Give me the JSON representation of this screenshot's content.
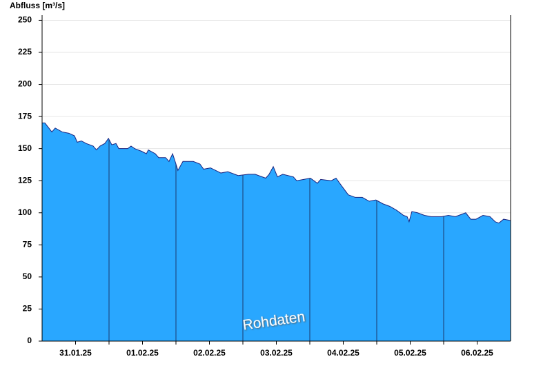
{
  "chart_data": {
    "type": "area",
    "y_label": "Abfluss [m³/s]",
    "annotation": "Rohdaten",
    "color": "#29a7ff",
    "line_color": "#1a237e",
    "x": [
      0,
      1.0,
      3.5,
      4.7,
      7.2,
      9.6,
      11.6,
      12.6,
      14.1,
      15.8,
      18.3,
      19.5,
      20.8,
      22.5,
      23.8,
      25.0,
      26.5,
      27.5,
      30.7,
      31.9,
      33.2,
      35.6,
      37.4,
      38.1,
      40.6,
      41.8,
      44.3,
      45.5,
      46.8,
      48.0,
      48.7,
      50.5,
      54.2,
      56.6,
      57.9,
      60.4,
      64.1,
      66.6,
      70.3,
      74.0,
      76.4,
      78.9,
      80.2,
      81.4,
      82.9,
      84.4,
      86.3,
      90.1,
      91.3,
      93.8,
      96.2,
      98.7,
      99.9,
      103.7,
      105.4,
      107.4,
      109.8,
      112.3,
      114.8,
      117.3,
      119.7,
      122.2,
      124.7,
      127.1,
      129.6,
      130.9,
      131.6,
      132.6,
      134.6,
      137.1,
      139.5,
      143.3,
      145.7,
      148.2,
      150.7,
      151.9,
      153.7,
      155.6,
      158.1,
      160.6,
      162.5,
      163.8,
      165.5,
      168
    ],
    "values": [
      170,
      170,
      163,
      166,
      163,
      162,
      160,
      155,
      156,
      154,
      152,
      149,
      152,
      154,
      158,
      153,
      154,
      150,
      150,
      152,
      150,
      148,
      146,
      149,
      146,
      143,
      143,
      140,
      146,
      138,
      133,
      140,
      140,
      138,
      134,
      135,
      131,
      132,
      129,
      130,
      130,
      128,
      127,
      130,
      136,
      128,
      130,
      128,
      125,
      126,
      127,
      123,
      126,
      125,
      127,
      121,
      114,
      112,
      112,
      109,
      110,
      107,
      105,
      102,
      98,
      97,
      93,
      101,
      100,
      98,
      97,
      97,
      98,
      97,
      99,
      100,
      95,
      95,
      98,
      97,
      93,
      92,
      95,
      94
    ],
    "xlim": [
      0,
      168
    ],
    "xticks": [
      {
        "value": 12,
        "label": "31.01.25"
      },
      {
        "value": 36,
        "label": "01.02.25"
      },
      {
        "value": 60,
        "label": "02.02.25"
      },
      {
        "value": 84,
        "label": "03.02.25"
      },
      {
        "value": 108,
        "label": "04.02.25"
      },
      {
        "value": 132,
        "label": "05.02.25"
      },
      {
        "value": 156,
        "label": "06.02.25"
      }
    ],
    "x_day_lines": [
      24,
      48,
      72,
      96,
      120,
      144
    ],
    "ylim": [
      0,
      254
    ],
    "yticks": [
      0,
      25,
      50,
      75,
      100,
      125,
      150,
      175,
      200,
      225,
      250
    ],
    "grid": true
  }
}
